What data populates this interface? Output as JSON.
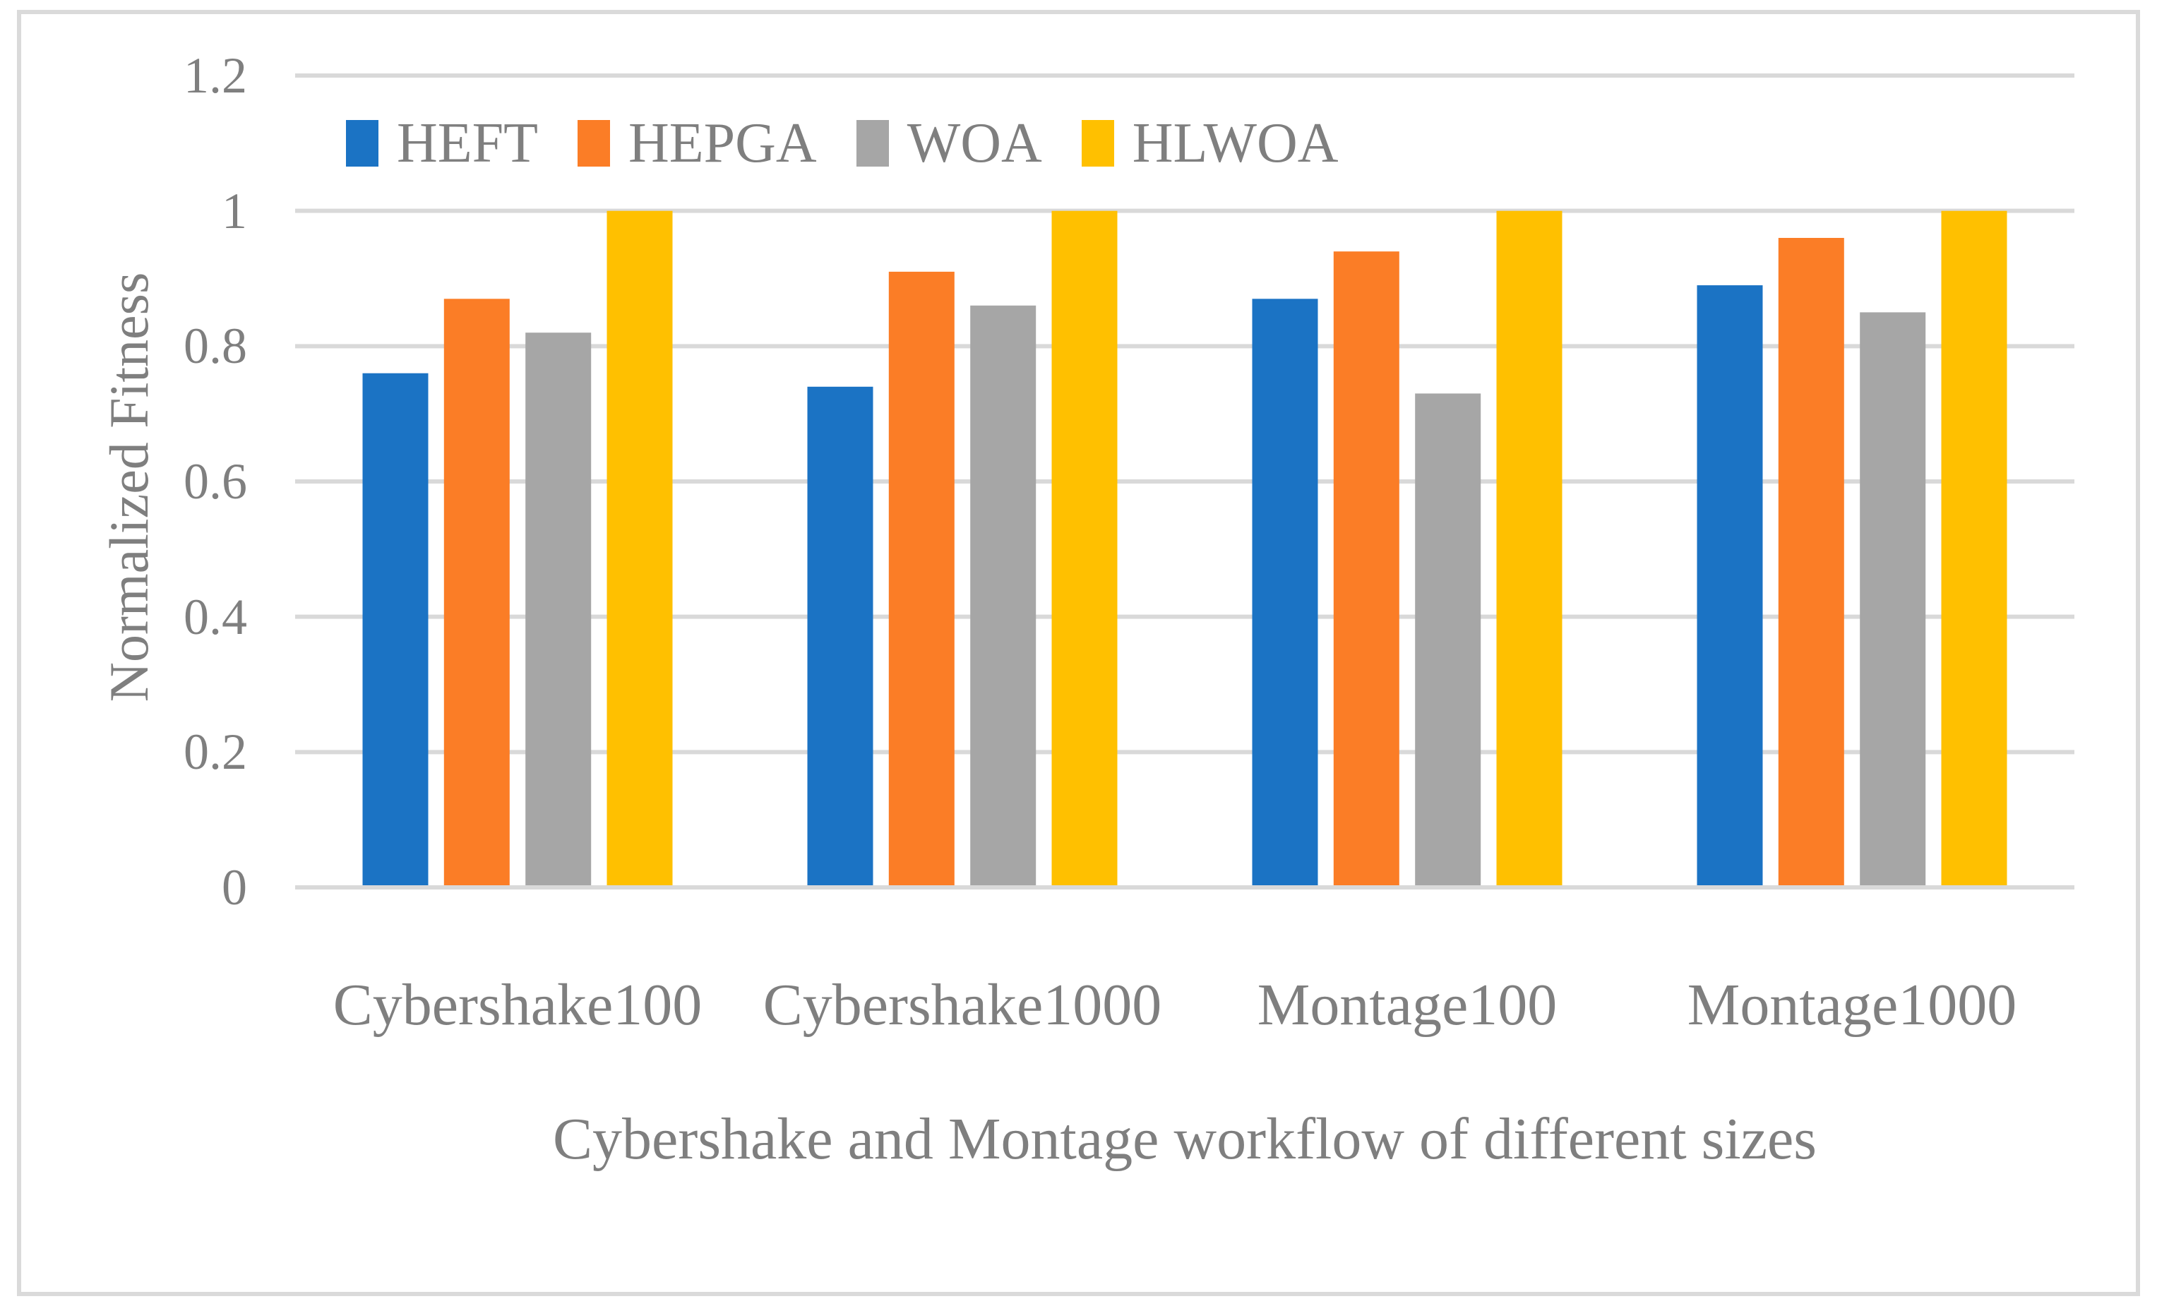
{
  "figure": {
    "kind": "grouped-bar-figure"
  },
  "style": {
    "background": "#FFFFFF",
    "border_color": "#DADADA",
    "gridline_color": "#D9D9D9",
    "axis_line_color": "#D9D9D9",
    "text_color": "#7F7F7F",
    "series_colors": [
      "#1B73C4",
      "#FB7D26",
      "#A6A6A6",
      "#FFC000"
    ]
  },
  "chart_data": {
    "type": "bar",
    "title": "",
    "xlabel": "Cybershake and Montage workflow of different sizes",
    "ylabel": "Normalized Fitness",
    "categories": [
      "Cybershake100",
      "Cybershake1000",
      "Montage100",
      "Montage1000"
    ],
    "series": [
      {
        "name": "HEFT",
        "color": "#1B73C4",
        "values": [
          0.76,
          0.74,
          0.87,
          0.89
        ]
      },
      {
        "name": "HEPGA",
        "color": "#FB7D26",
        "values": [
          0.87,
          0.91,
          0.94,
          0.96
        ]
      },
      {
        "name": "WOA",
        "color": "#A6A6A6",
        "values": [
          0.82,
          0.86,
          0.73,
          0.85
        ]
      },
      {
        "name": "HLWOA",
        "color": "#FFC000",
        "values": [
          1.0,
          1.0,
          1.0,
          1.0
        ]
      }
    ],
    "ylim": [
      0,
      1.2
    ],
    "yticks": [
      0,
      0.2,
      0.4,
      0.6,
      0.8,
      1,
      1.2
    ],
    "ytick_labels": [
      "0",
      "0.2",
      "0.4",
      "0.6",
      "0.8",
      "1",
      "1.2"
    ],
    "grid": true,
    "legend_position": "top-inside-left",
    "legend_entries": [
      "HEFT",
      "HEPGA",
      "WOA",
      "HLWOA"
    ]
  }
}
